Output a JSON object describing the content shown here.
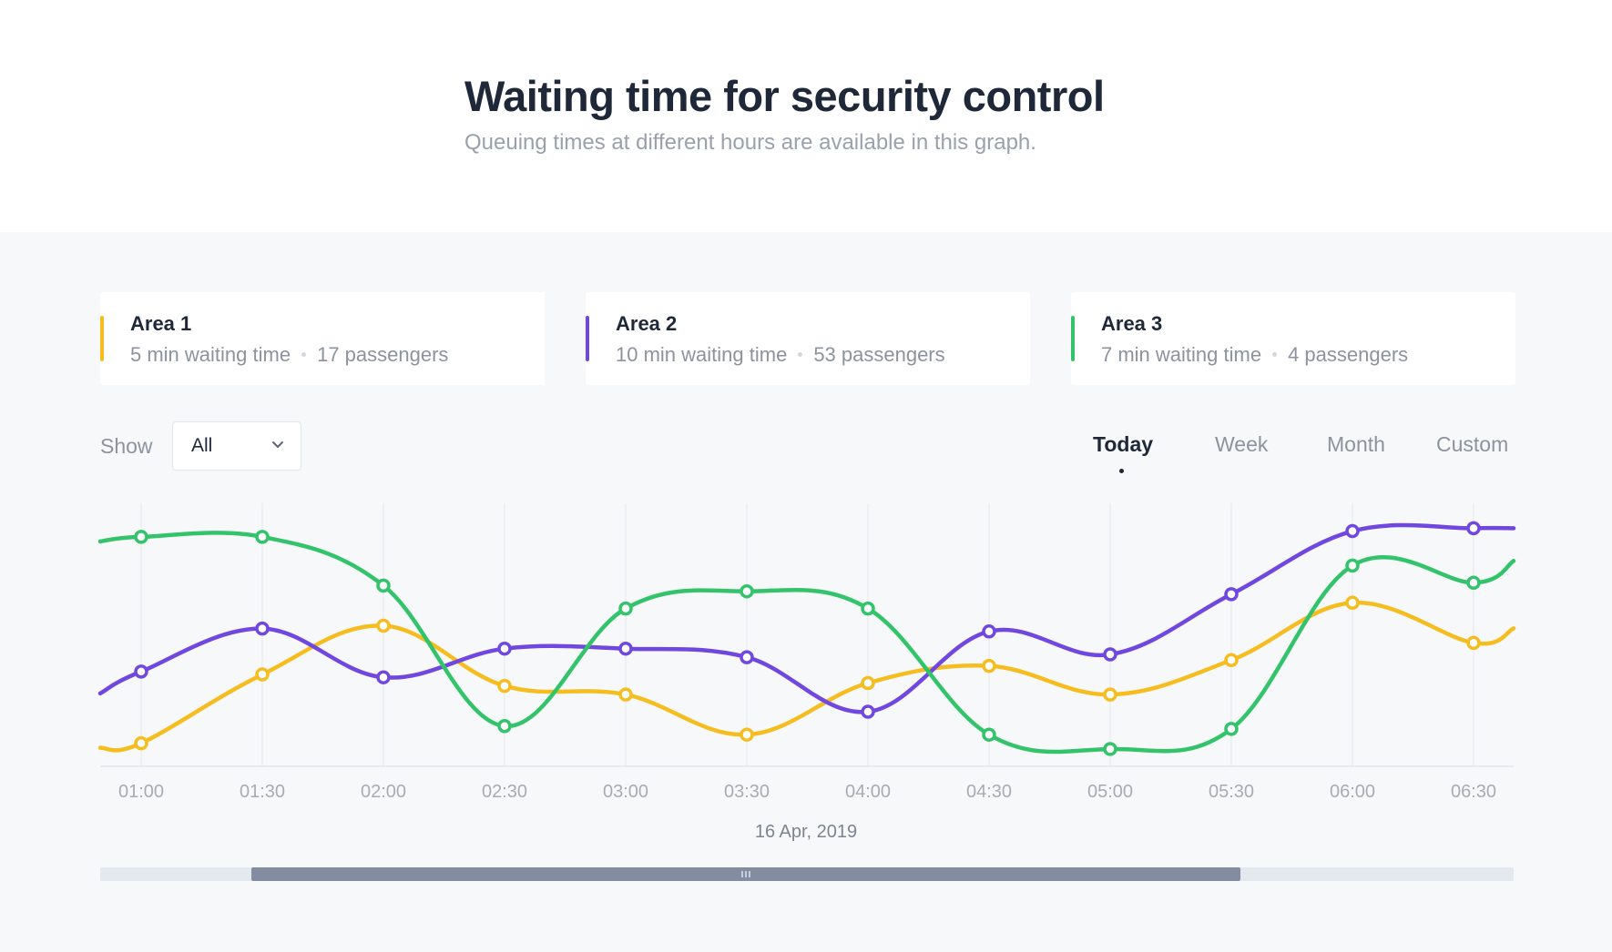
{
  "header": {
    "title": "Waiting time for security control",
    "subtitle": "Queuing times at different hours are available in this graph."
  },
  "cards": [
    {
      "name": "Area 1",
      "waiting": "5 min waiting time",
      "passengers": "17 passengers",
      "color": "#f5bd1f"
    },
    {
      "name": "Area 2",
      "waiting": "10 min waiting time",
      "passengers": "53 passengers",
      "color": "#7048e0"
    },
    {
      "name": "Area 3",
      "waiting": "7 min waiting time",
      "passengers": "4 passengers",
      "color": "#33c46b"
    }
  ],
  "filter": {
    "label": "Show",
    "selected": "All",
    "icon": "chevron-down-icon"
  },
  "tabs": [
    {
      "label": "Today",
      "active": true
    },
    {
      "label": "Week",
      "active": false
    },
    {
      "label": "Month",
      "active": false
    },
    {
      "label": "Custom",
      "active": false
    }
  ],
  "chart_data": {
    "type": "line",
    "title": "",
    "xlabel": "16 Apr, 2019",
    "ylabel": "",
    "grid": true,
    "ylim": [
      0,
      100
    ],
    "categories": [
      "01:00",
      "01:30",
      "02:00",
      "02:30",
      "03:00",
      "03:30",
      "04:00",
      "04:30",
      "05:00",
      "05:30",
      "06:00",
      "06:30"
    ],
    "series": [
      {
        "name": "Area 1",
        "color": "#f5bd1f",
        "values": [
          9,
          33,
          50,
          29,
          26,
          12,
          30,
          36,
          26,
          38,
          58,
          44
        ]
      },
      {
        "name": "Area 2",
        "color": "#7048e0",
        "values": [
          34,
          49,
          32,
          42,
          42,
          39,
          20,
          48,
          40,
          61,
          83,
          84
        ]
      },
      {
        "name": "Area 3",
        "color": "#33c46b",
        "values": [
          81,
          81,
          64,
          15,
          56,
          62,
          56,
          12,
          7,
          14,
          71,
          65
        ]
      }
    ]
  },
  "scrollbar": {
    "position": 0.107,
    "extent": 0.7
  }
}
